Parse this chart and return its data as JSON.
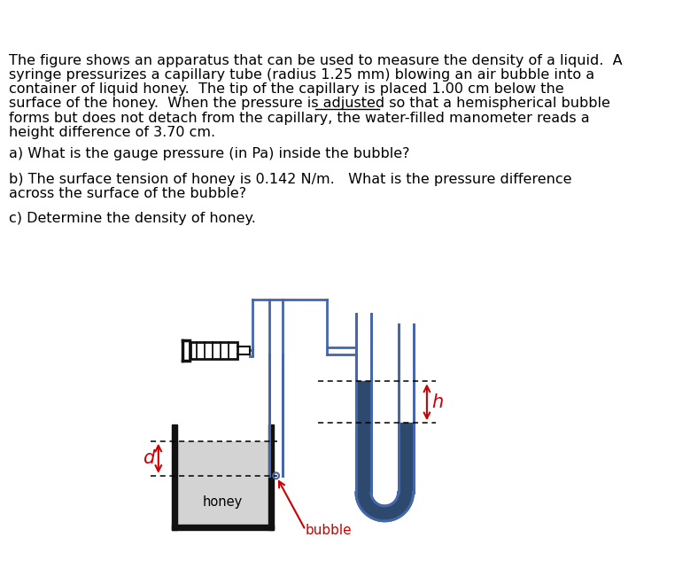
{
  "bg_color": "#ffffff",
  "text_color": "#000000",
  "red_color": "#cc0000",
  "blue_tube_color": "#4466aa",
  "dark_blue_fill": "#2d4a6e",
  "honey_color": "#d3d3d3",
  "tank_color": "#111111",
  "syringe_color": "#111111",
  "title_lines": [
    "The figure shows an apparatus that can be used to measure the density of a liquid.  A",
    "syringe pressurizes a capillary tube (radius 1.25 mm) blowing an air bubble into a",
    "container of liquid honey.  The tip of the capillary is placed 1.00 cm below the",
    "surface of the honey.  When the pressure is adjusted so that a hemispherical bubble",
    "forms but does not detach from the capillary, the water-filled manometer reads a",
    "height difference of 3.70 cm."
  ],
  "underline_word": "hemispherical",
  "q_a": "a) What is the gauge pressure (in Pa) inside the bubble?",
  "q_b1": "b) The surface tension of honey is 0.142 N/m.   What is the pressure difference",
  "q_b2": "across the surface of the bubble?",
  "q_c": "c) Determine the density of honey."
}
